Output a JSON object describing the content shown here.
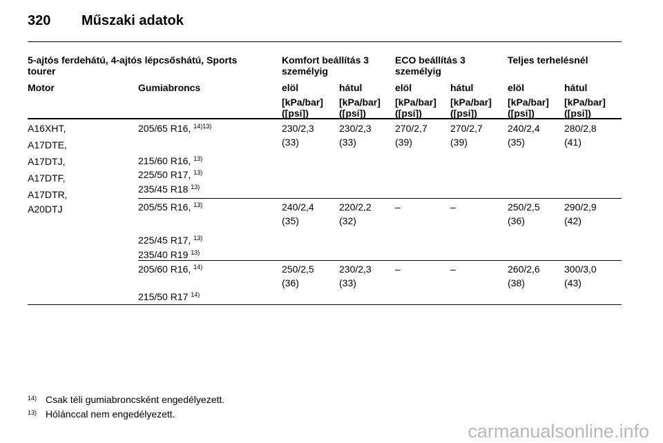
{
  "header": {
    "page_number": "320",
    "title": "Műszaki adatok"
  },
  "table": {
    "group_headers": [
      "5-ajtós ferdehátú, 4-ajtós lépcsőshátú, Sports tourer",
      "Komfort beállítás 3 személyig",
      "ECO beállítás 3 személyig",
      "Teljes terhelésnél"
    ],
    "column_headers": [
      "Motor",
      "Gumiabroncs",
      "elöl",
      "hátul",
      "elöl",
      "hátul",
      "elöl",
      "hátul"
    ],
    "unit_headers": [
      [
        "[kPa/bar]",
        "([psi])"
      ],
      [
        "[kPa/bar]",
        "([psi])"
      ],
      [
        "[kPa/bar]",
        "([psi])"
      ],
      [
        "[kPa/bar]",
        "([psi])"
      ],
      [
        "[kPa/bar]",
        "([psi])"
      ],
      [
        "[kPa/bar]",
        "([psi])"
      ]
    ],
    "motors": [
      "A16XHT,",
      "A17DTE,",
      "A17DTJ,",
      "A17DTF,",
      "A17DTR,",
      "A20DTJ"
    ],
    "groups": [
      {
        "tires": [
          {
            "size": "205/65 R16,",
            "note": "14)13)"
          },
          {
            "size": "215/60 R16,",
            "note": "13)"
          },
          {
            "size": "225/50 R17,",
            "note": "13)"
          },
          {
            "size": "235/45 R18",
            "note": "13)"
          }
        ],
        "values": [
          [
            "230/2,3",
            "(33)"
          ],
          [
            "230/2,3",
            "(33)"
          ],
          [
            "270/2,7",
            "(39)"
          ],
          [
            "270/2,7",
            "(39)"
          ],
          [
            "240/2,4",
            "(35)"
          ],
          [
            "280/2,8",
            "(41)"
          ]
        ]
      },
      {
        "tires": [
          {
            "size": "205/55 R16,",
            "note": "13)"
          },
          {
            "size": "225/45 R17,",
            "note": "13)"
          },
          {
            "size": "235/40 R19",
            "note": "13)"
          }
        ],
        "values": [
          [
            "240/2,4",
            "(35)"
          ],
          [
            "220/2,2",
            "(32)"
          ],
          [
            "–"
          ],
          [
            "–"
          ],
          [
            "250/2,5",
            "(36)"
          ],
          [
            "290/2,9",
            "(42)"
          ]
        ]
      },
      {
        "tires": [
          {
            "size": "205/60 R16,",
            "note": "14)"
          },
          {
            "size": "215/50 R17",
            "note": "14)"
          }
        ],
        "values": [
          [
            "250/2,5",
            "(36)"
          ],
          [
            "230/2,3",
            "(33)"
          ],
          [
            "–"
          ],
          [
            "–"
          ],
          [
            "260/2,6",
            "(38)"
          ],
          [
            "300/3,0",
            "(43)"
          ]
        ]
      }
    ]
  },
  "footnotes": [
    {
      "mark": "14)",
      "text": "Csak téli gumiabroncsként engedélyezett."
    },
    {
      "mark": "13)",
      "text": "Hólánccal nem engedélyezett."
    }
  ],
  "watermark": "carmanualsonline.info"
}
